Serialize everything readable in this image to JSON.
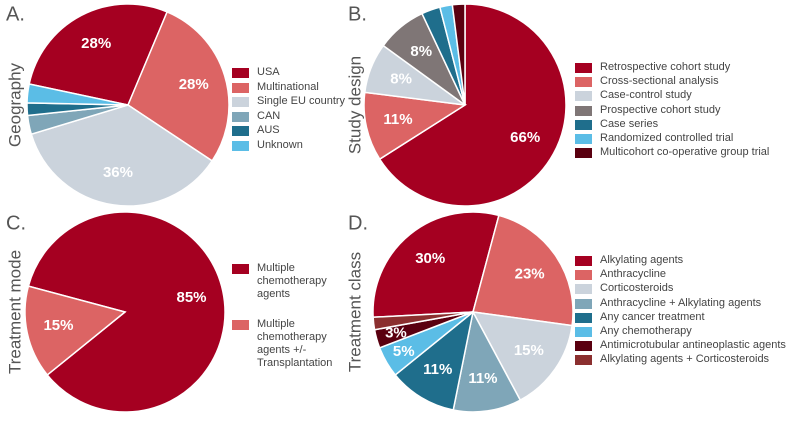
{
  "chart_data": [
    {
      "type": "pie",
      "panel": "A.",
      "title": "Geography",
      "categories": [
        "USA",
        "Multinational",
        "Single EU country",
        "CAN",
        "AUS",
        "Unknown"
      ],
      "values": [
        28,
        28,
        36,
        3,
        2,
        3
      ],
      "value_labels": [
        "28%",
        "28%",
        "36%",
        null,
        null,
        null
      ],
      "colors": [
        "#a50021",
        "#dc6464",
        "#cbd3dc",
        "#7fa6b8",
        "#1f6e8c",
        "#5bbde6"
      ]
    },
    {
      "type": "pie",
      "panel": "B.",
      "title": "Study design",
      "categories": [
        "Retrospective cohort study",
        "Cross-sectional analysis",
        "Case-control study",
        "Prospective cohort study",
        "Case series",
        "Randomized controlled trial",
        "Multicohort co-operative group trial"
      ],
      "values": [
        66,
        11,
        8,
        8,
        3,
        2,
        2
      ],
      "value_labels": [
        "66%",
        "11%",
        "8%",
        "8%",
        null,
        null,
        null
      ],
      "colors": [
        "#a50021",
        "#dc6464",
        "#cbd3dc",
        "#7f7676",
        "#1f6e8c",
        "#5bbde6",
        "#5a0010"
      ]
    },
    {
      "type": "pie",
      "panel": "C.",
      "title": "Treatment mode",
      "categories": [
        "Multiple chemotherapy agents",
        "Multiple chemotherapy agents +/- Transplantation"
      ],
      "values": [
        85,
        15
      ],
      "value_labels": [
        "85%",
        "15%"
      ],
      "colors": [
        "#a50021",
        "#dc6464"
      ]
    },
    {
      "type": "pie",
      "panel": "D.",
      "title": "Treatment class",
      "categories": [
        "Alkylating agents",
        "Anthracycline",
        "Corticosteroids",
        "Anthracycline + Alkylating agents",
        "Any cancer treatment",
        "Any chemotherapy",
        "Antimicrotubular antineoplastic agents",
        "Alkylating agents + Corticosteroids"
      ],
      "values": [
        30,
        23,
        15,
        11,
        11,
        5,
        3,
        2
      ],
      "value_labels": [
        "30%",
        "23%",
        "15%",
        "11%",
        "11%",
        "5%",
        "3%",
        null
      ],
      "colors": [
        "#a50021",
        "#dc6464",
        "#cbd3dc",
        "#7fa6b8",
        "#1f6e8c",
        "#5bbde6",
        "#5a0010",
        "#8b2f2f"
      ]
    }
  ]
}
